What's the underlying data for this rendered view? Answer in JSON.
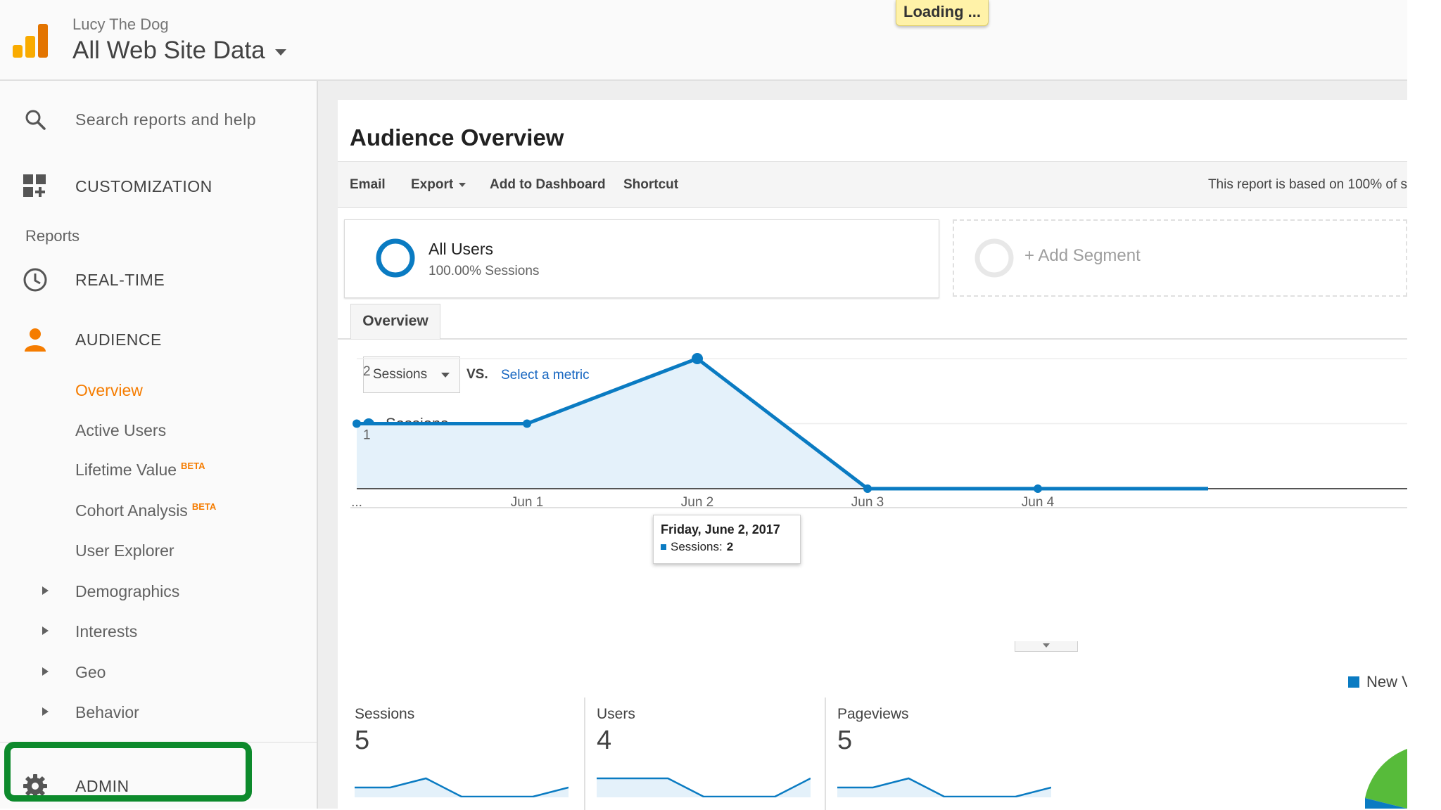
{
  "header": {
    "account_name": "Lucy The Dog",
    "property_name": "All Web Site Data",
    "loading_text": "Loading ..."
  },
  "sidebar": {
    "search_placeholder": "Search reports and help",
    "customization": "CUSTOMIZATION",
    "reports_heading": "Reports",
    "realtime": "REAL-TIME",
    "audience": "AUDIENCE",
    "audience_items": [
      {
        "label": "Overview"
      },
      {
        "label": "Active Users"
      },
      {
        "label": "Lifetime Value",
        "badge": "BETA"
      },
      {
        "label": "Cohort Analysis",
        "badge": "BETA"
      },
      {
        "label": "User Explorer"
      },
      {
        "label": "Demographics"
      },
      {
        "label": "Interests"
      },
      {
        "label": "Geo"
      },
      {
        "label": "Behavior"
      }
    ],
    "admin": "ADMIN"
  },
  "main": {
    "title": "Audience Overview",
    "toolbar": {
      "email": "Email",
      "export": "Export",
      "add_to_dashboard": "Add to Dashboard",
      "shortcut": "Shortcut",
      "report_basis": "This report is based on 100% of s"
    },
    "segment": {
      "name": "All Users",
      "percent": "100.00% Sessions"
    },
    "add_segment": "+ Add Segment",
    "tab": "Overview",
    "metric_select": "Sessions",
    "vs": "VS.",
    "select_metric": "Select a metric",
    "tooltip": {
      "date": "Friday, June 2, 2017",
      "series": "Sessions:",
      "value": "2"
    },
    "pie_legend": "New Visitor",
    "scorecards": [
      {
        "label": "Sessions",
        "value": "5",
        "spark": [
          1,
          1,
          2,
          0,
          0,
          0,
          1
        ]
      },
      {
        "label": "Users",
        "value": "4",
        "spark": [
          1,
          1,
          1,
          0,
          0,
          0,
          1
        ]
      },
      {
        "label": "Pageviews",
        "value": "5",
        "spark": [
          1,
          1,
          2,
          0,
          0,
          0,
          1
        ]
      }
    ]
  },
  "colors": {
    "accent_orange": "#f57c00",
    "line_blue": "#0a7bc2",
    "area_fill": "#e4f1fa",
    "admin_highlight": "#0d8a2c"
  },
  "chart_data": {
    "type": "area",
    "series": [
      {
        "name": "Sessions",
        "values": [
          1,
          1,
          2,
          0,
          0,
          0
        ]
      }
    ],
    "x": [
      "...",
      "Jun 1",
      "Jun 2",
      "Jun 3",
      "Jun 4",
      ""
    ],
    "ylim": [
      0,
      2
    ],
    "y_ticks": [
      "1",
      "2"
    ],
    "grid": true,
    "legend": "top-left"
  }
}
